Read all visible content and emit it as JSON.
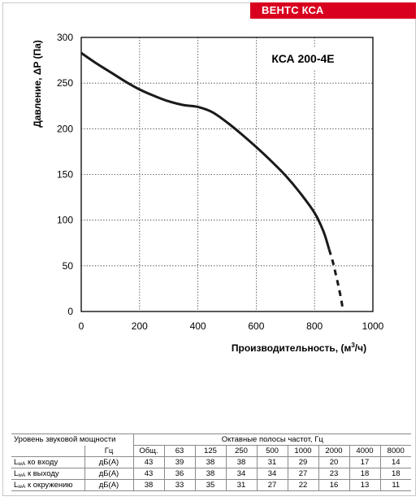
{
  "header": {
    "brand": "ВЕНТС КСА"
  },
  "chart_data": {
    "type": "line",
    "model_label": "КСА 200-4E",
    "xlabel": "Производительность, (м³/ч)",
    "xlabel_parts": {
      "text": "Производительность, (м",
      "sup": "3",
      "tail": "/ч)"
    },
    "ylabel": "Давление, ΔP (Па)",
    "xlim": [
      0,
      1000
    ],
    "ylim": [
      0,
      300
    ],
    "x_ticks": [
      "0",
      "200",
      "400",
      "600",
      "800",
      "1000"
    ],
    "y_ticks": [
      "0",
      "50",
      "100",
      "150",
      "200",
      "250",
      "300"
    ],
    "grid": true,
    "series": [
      {
        "style": "solid",
        "x": [
          0,
          50,
          100,
          150,
          200,
          250,
          300,
          350,
          400,
          450,
          500,
          550,
          600,
          650,
          700,
          750,
          800,
          830,
          850
        ],
        "y": [
          283,
          272,
          262,
          252,
          243,
          236,
          230,
          226,
          224,
          218,
          207,
          194,
          180,
          165,
          149,
          130,
          108,
          88,
          68
        ]
      },
      {
        "style": "dashed",
        "x": [
          850,
          862,
          872,
          882,
          892,
          898
        ],
        "y": [
          68,
          55,
          42,
          28,
          12,
          0
        ]
      }
    ]
  },
  "table": {
    "title": "Уровень звуковой мощности",
    "bands_title": "Октавные полосы частот, Гц",
    "unit_header": "Гц",
    "columns": [
      "Общ.",
      "63",
      "125",
      "250",
      "500",
      "1000",
      "2000",
      "4000",
      "8000"
    ],
    "rows": [
      {
        "label_main": "L",
        "label_sub": "wA",
        "label_rest": " ко входу",
        "unit": "дБ(А)",
        "values": [
          "43",
          "39",
          "38",
          "38",
          "31",
          "29",
          "20",
          "17",
          "14"
        ]
      },
      {
        "label_main": "L",
        "label_sub": "wA",
        "label_rest": " к выходу",
        "unit": "дБ(А)",
        "values": [
          "43",
          "36",
          "38",
          "34",
          "34",
          "27",
          "23",
          "18",
          "18"
        ]
      },
      {
        "label_main": "L",
        "label_sub": "wA",
        "label_rest": " к окружению",
        "unit": "дБ(А)",
        "values": [
          "38",
          "33",
          "35",
          "31",
          "27",
          "22",
          "16",
          "13",
          "11"
        ]
      }
    ]
  }
}
